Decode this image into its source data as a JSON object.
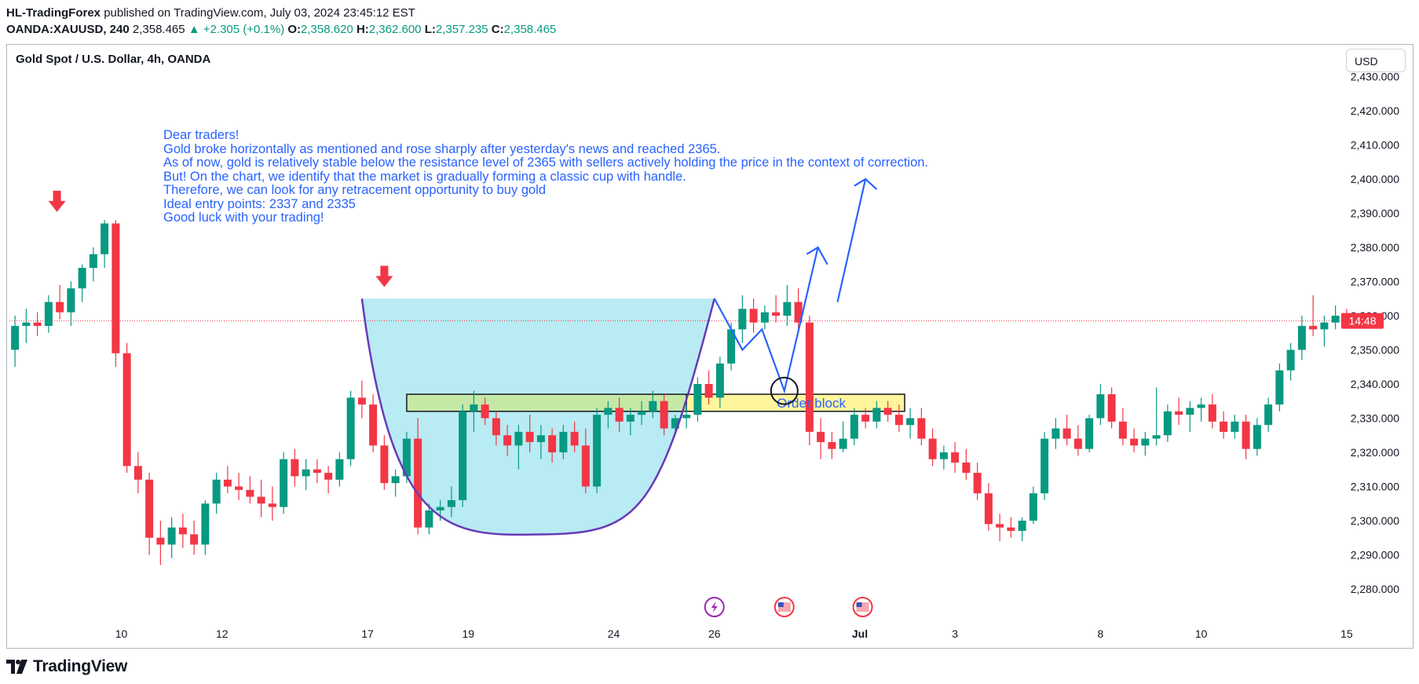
{
  "header": {
    "publisher": "HL-TradingForex",
    "published_text": "published on TradingView.com, July 03, 2024 23:45:12 EST",
    "symbol_text": "OANDA:XAUUSD, 240",
    "price": "2,358.465",
    "change": "▲ +2.305 (+0.1%)",
    "o_label": "O:",
    "o_value": "2,358.620",
    "h_label": "H:",
    "h_value": "2,362.600",
    "l_label": "L:",
    "l_value": "2,357.235",
    "c_label": "C:",
    "c_value": "2,358.465"
  },
  "chart_title": "Gold Spot / U.S. Dollar, 4h, OANDA",
  "currency_button": "USD",
  "note_lines": [
    "Dear traders!",
    "Gold broke horizontally as mentioned and rose sharply after yesterday's news and reached 2365.",
    "As of now, gold is relatively stable below the resistance level of 2365 with sellers actively holding the price in the context of correction.",
    "But! On the chart, we identify that the market is gradually forming a classic cup with handle.",
    "Therefore, we can look for any retracement opportunity to buy gold",
    "Ideal entry points: 2337 and 2335",
    "Good luck with your trading!"
  ],
  "footer": {
    "brand": "TradingView"
  },
  "colors": {
    "up": "#089981",
    "down": "#f23645",
    "annotation": "#2962ff",
    "cup_fill": "#b8ebf3",
    "cup_line": "#673ab7",
    "order_block": "#fff59d",
    "order_block_green": "#c5e8a7",
    "price_label": "#f23645"
  },
  "chart_data": {
    "type": "candlestick",
    "title": "Gold Spot / U.S. Dollar, 4h, OANDA",
    "ylim": [
      2275,
      2432
    ],
    "y_ticks": [
      2280,
      2290,
      2300,
      2310,
      2320,
      2330,
      2340,
      2350,
      2360,
      2370,
      2380,
      2390,
      2400,
      2410,
      2420,
      2430
    ],
    "y_tick_labels": [
      "2,280.000",
      "2,290.000",
      "2,300.000",
      "2,310.000",
      "2,320.000",
      "2,330.000",
      "2,340.000",
      "2,350.000",
      "2,360.000",
      "2,370.000",
      "2,380.000",
      "2,390.000",
      "2,400.000",
      "2,410.000",
      "2,420.000",
      "2,430.000"
    ],
    "x_range": [
      0,
      240
    ],
    "x_ticks": [
      {
        "x": 20,
        "label": "10"
      },
      {
        "x": 38,
        "label": "12"
      },
      {
        "x": 64,
        "label": "17"
      },
      {
        "x": 82,
        "label": "19"
      },
      {
        "x": 108,
        "label": "24"
      },
      {
        "x": 126,
        "label": "26"
      },
      {
        "x": 152,
        "label": "Jul"
      },
      {
        "x": 169,
        "label": "3"
      },
      {
        "x": 195,
        "label": "8"
      },
      {
        "x": 213,
        "label": "10"
      },
      {
        "x": 239,
        "label": "15"
      }
    ],
    "last_price": 2358.465,
    "last_price_label": "14:48",
    "candles": [
      [
        2350,
        2360,
        2345,
        2357
      ],
      [
        2357,
        2362,
        2352,
        2358
      ],
      [
        2358,
        2361,
        2354,
        2357
      ],
      [
        2357,
        2366,
        2355,
        2364
      ],
      [
        2364,
        2369,
        2359,
        2361
      ],
      [
        2361,
        2370,
        2357,
        2368
      ],
      [
        2368,
        2375,
        2364,
        2374
      ],
      [
        2374,
        2380,
        2370,
        2378
      ],
      [
        2378,
        2388,
        2374,
        2387
      ],
      [
        2387,
        2388,
        2345,
        2349
      ],
      [
        2349,
        2352,
        2314,
        2316
      ],
      [
        2316,
        2320,
        2308,
        2312
      ],
      [
        2312,
        2314,
        2290,
        2295
      ],
      [
        2295,
        2300,
        2287,
        2293
      ],
      [
        2293,
        2301,
        2289,
        2298
      ],
      [
        2298,
        2302,
        2292,
        2296
      ],
      [
        2296,
        2300,
        2290,
        2293
      ],
      [
        2293,
        2306,
        2290,
        2305
      ],
      [
        2305,
        2314,
        2302,
        2312
      ],
      [
        2312,
        2316,
        2308,
        2310
      ],
      [
        2310,
        2314,
        2306,
        2309
      ],
      [
        2309,
        2313,
        2305,
        2307
      ],
      [
        2307,
        2312,
        2301,
        2305
      ],
      [
        2305,
        2310,
        2300,
        2304
      ],
      [
        2304,
        2320,
        2302,
        2318
      ],
      [
        2318,
        2321,
        2310,
        2313
      ],
      [
        2313,
        2318,
        2309,
        2315
      ],
      [
        2315,
        2318,
        2311,
        2314
      ],
      [
        2314,
        2316,
        2308,
        2312
      ],
      [
        2312,
        2320,
        2310,
        2318
      ],
      [
        2318,
        2338,
        2316,
        2336
      ],
      [
        2336,
        2341,
        2330,
        2334
      ],
      [
        2334,
        2337,
        2320,
        2322
      ],
      [
        2322,
        2325,
        2309,
        2311
      ],
      [
        2311,
        2315,
        2307,
        2313
      ],
      [
        2313,
        2326,
        2311,
        2324
      ],
      [
        2324,
        2330,
        2296,
        2298
      ],
      [
        2298,
        2305,
        2296,
        2303
      ],
      [
        2303,
        2306,
        2300,
        2304
      ],
      [
        2304,
        2310,
        2301,
        2306
      ],
      [
        2306,
        2334,
        2304,
        2332
      ],
      [
        2332,
        2338,
        2326,
        2334
      ],
      [
        2334,
        2336,
        2328,
        2330
      ],
      [
        2330,
        2332,
        2322,
        2325
      ],
      [
        2325,
        2328,
        2319,
        2322
      ],
      [
        2322,
        2328,
        2315,
        2326
      ],
      [
        2326,
        2331,
        2320,
        2323
      ],
      [
        2323,
        2328,
        2318,
        2325
      ],
      [
        2325,
        2327,
        2317,
        2320
      ],
      [
        2320,
        2328,
        2318,
        2326
      ],
      [
        2326,
        2329,
        2320,
        2322
      ],
      [
        2322,
        2327,
        2308,
        2310
      ],
      [
        2310,
        2333,
        2308,
        2331
      ],
      [
        2331,
        2335,
        2327,
        2333
      ],
      [
        2333,
        2336,
        2326,
        2329
      ],
      [
        2329,
        2333,
        2325,
        2331
      ],
      [
        2331,
        2335,
        2328,
        2332
      ],
      [
        2332,
        2338,
        2330,
        2335
      ],
      [
        2335,
        2337,
        2325,
        2327
      ],
      [
        2327,
        2331,
        2325,
        2330
      ],
      [
        2330,
        2334,
        2327,
        2331
      ],
      [
        2331,
        2342,
        2329,
        2340
      ],
      [
        2340,
        2344,
        2334,
        2336
      ],
      [
        2336,
        2348,
        2333,
        2346
      ],
      [
        2346,
        2358,
        2344,
        2356
      ],
      [
        2356,
        2366,
        2352,
        2362
      ],
      [
        2362,
        2365,
        2355,
        2358
      ],
      [
        2358,
        2363,
        2356,
        2361
      ],
      [
        2361,
        2366,
        2358,
        2360
      ],
      [
        2360,
        2369,
        2357,
        2364
      ],
      [
        2364,
        2368,
        2355,
        2358
      ],
      [
        2358,
        2360,
        2322,
        2326
      ],
      [
        2326,
        2330,
        2318,
        2323
      ],
      [
        2323,
        2326,
        2318,
        2321
      ],
      [
        2321,
        2329,
        2320,
        2324
      ],
      [
        2324,
        2333,
        2322,
        2331
      ],
      [
        2331,
        2333,
        2327,
        2329
      ],
      [
        2329,
        2335,
        2327,
        2333
      ],
      [
        2333,
        2335,
        2329,
        2331
      ],
      [
        2331,
        2334,
        2326,
        2328
      ],
      [
        2328,
        2333,
        2324,
        2330
      ],
      [
        2330,
        2333,
        2322,
        2324
      ],
      [
        2324,
        2327,
        2316,
        2318
      ],
      [
        2318,
        2322,
        2315,
        2320
      ],
      [
        2320,
        2323,
        2314,
        2317
      ],
      [
        2317,
        2321,
        2312,
        2314
      ],
      [
        2314,
        2317,
        2306,
        2308
      ],
      [
        2308,
        2311,
        2297,
        2299
      ],
      [
        2299,
        2302,
        2294,
        2298
      ],
      [
        2298,
        2301,
        2295,
        2297
      ],
      [
        2297,
        2301,
        2294,
        2300
      ],
      [
        2300,
        2310,
        2299,
        2308
      ],
      [
        2308,
        2326,
        2306,
        2324
      ],
      [
        2324,
        2330,
        2321,
        2327
      ],
      [
        2327,
        2331,
        2322,
        2324
      ],
      [
        2324,
        2328,
        2319,
        2321
      ],
      [
        2321,
        2331,
        2320,
        2330
      ],
      [
        2330,
        2340,
        2328,
        2337
      ],
      [
        2337,
        2339,
        2327,
        2329
      ],
      [
        2329,
        2333,
        2322,
        2324
      ],
      [
        2324,
        2327,
        2320,
        2322
      ],
      [
        2322,
        2326,
        2319,
        2324
      ],
      [
        2324,
        2339,
        2322,
        2325
      ],
      [
        2325,
        2334,
        2323,
        2332
      ],
      [
        2332,
        2336,
        2328,
        2331
      ],
      [
        2331,
        2335,
        2326,
        2333
      ],
      [
        2333,
        2336,
        2329,
        2334
      ],
      [
        2334,
        2337,
        2327,
        2329
      ],
      [
        2329,
        2332,
        2324,
        2326
      ],
      [
        2326,
        2331,
        2324,
        2329
      ],
      [
        2329,
        2331,
        2318,
        2321
      ],
      [
        2321,
        2330,
        2319,
        2328
      ],
      [
        2328,
        2336,
        2326,
        2334
      ],
      [
        2334,
        2346,
        2332,
        2344
      ],
      [
        2344,
        2352,
        2341,
        2350
      ],
      [
        2350,
        2360,
        2347,
        2357
      ],
      [
        2357,
        2366,
        2354,
        2356
      ],
      [
        2356,
        2360,
        2351,
        2358
      ],
      [
        2358,
        2363,
        2356,
        2360
      ],
      [
        2360,
        2362,
        2357,
        2358
      ]
    ],
    "annotations": {
      "down_arrows": [
        {
          "x": 8.5,
          "y": 2389
        },
        {
          "x": 67,
          "y": 2367
        }
      ],
      "cup_rim_y": 2365,
      "cup_start_x": 63,
      "cup_end_x": 126,
      "cup_bottom": {
        "x": 96,
        "y": 2296
      },
      "order_block_green": {
        "x1": 71,
        "x2": 121,
        "y1": 2332,
        "y2": 2337
      },
      "order_block": {
        "x1": 121,
        "x2": 160,
        "y1": 2332,
        "y2": 2337,
        "label": "Order block"
      },
      "projection": [
        [
          126,
          2365
        ],
        [
          131,
          2350
        ],
        [
          134.5,
          2356
        ],
        [
          138.5,
          2338
        ],
        [
          144.5,
          2380
        ],
        [
          142.5,
          2378
        ],
        [
          146.2,
          2375
        ]
      ],
      "projection2": [
        [
          148,
          2364
        ],
        [
          153,
          2400
        ],
        [
          151,
          2398
        ],
        [
          155,
          2397
        ]
      ],
      "circle": {
        "x": 138.5,
        "y": 2338
      },
      "event_icons": [
        {
          "x": 126,
          "label": "lightning"
        },
        {
          "x": 138.5,
          "label": "us-flag"
        },
        {
          "x": 152.5,
          "label": "us-flag"
        }
      ]
    }
  }
}
